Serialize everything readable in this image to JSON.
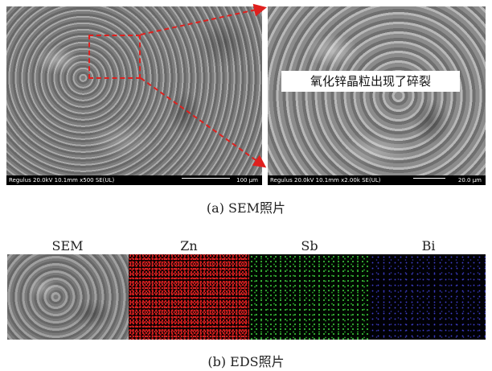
{
  "sem": {
    "left_panel": {
      "info": "Regulus 20.0kV 10.1mm x500 SE(UL)",
      "scale": "100 μm"
    },
    "right_panel": {
      "info": "Regulus 20.0kV 10.1mm x2.00k SE(UL)",
      "scale": "20.0 μm"
    },
    "annotation": "氧化锌晶粒出现了碎裂",
    "caption": "(a) SEM照片"
  },
  "eds": {
    "labels": [
      "SEM",
      "Zn",
      "Sb",
      "Bi"
    ],
    "caption": "(b) EDS照片"
  },
  "colors": {
    "zoom_box": "#e0201e",
    "zn": "#e02020",
    "sb": "#3ecf3e",
    "bi": "#4040d0"
  }
}
